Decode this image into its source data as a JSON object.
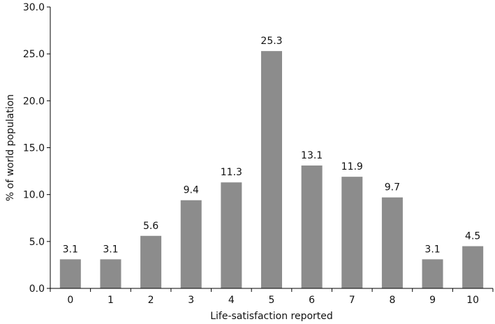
{
  "chart_data": {
    "type": "bar",
    "categories": [
      "0",
      "1",
      "2",
      "3",
      "4",
      "5",
      "6",
      "7",
      "8",
      "9",
      "10"
    ],
    "values": [
      3.1,
      3.1,
      5.6,
      9.4,
      11.3,
      25.3,
      13.1,
      11.9,
      9.7,
      3.1,
      4.5
    ],
    "data_labels": [
      "3.1",
      "3.1",
      "5.6",
      "9.4",
      "11.3",
      "25.3",
      "13.1",
      "11.9",
      "9.7",
      "3.1",
      "4.5"
    ],
    "title": "",
    "xlabel": "Life-satisfaction reported",
    "ylabel": "% of world population",
    "ylim": [
      0,
      30
    ],
    "yticks": [
      "0.0",
      "5.0",
      "10.0",
      "15.0",
      "20.0",
      "25.0",
      "30.0"
    ],
    "ytick_values": [
      0,
      5,
      10,
      15,
      20,
      25,
      30
    ],
    "grid": false,
    "colors": {
      "bar": "#8c8c8c",
      "axis": "#000000"
    }
  }
}
